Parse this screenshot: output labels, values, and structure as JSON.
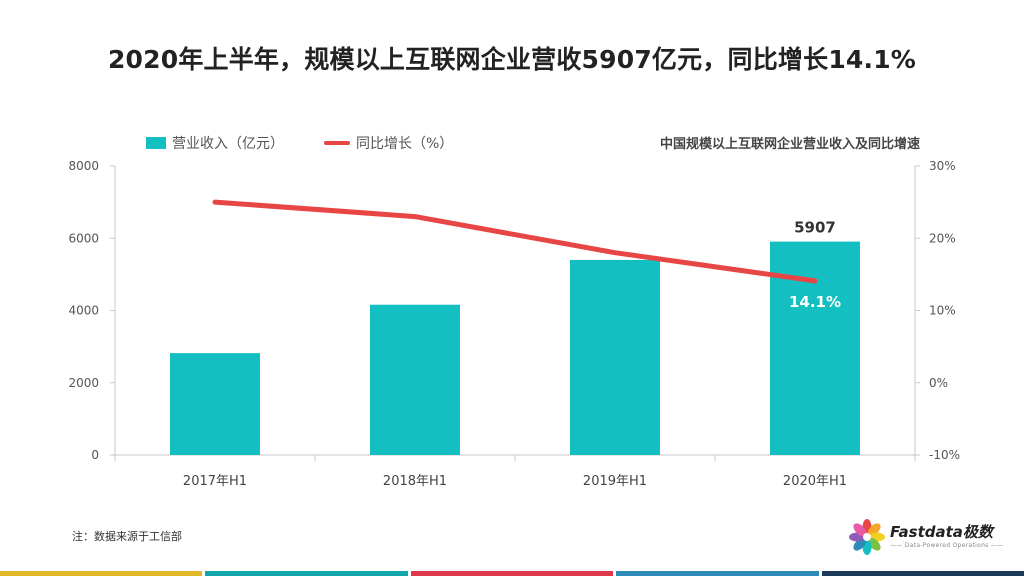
{
  "header": {
    "title": "2020年上半年，规模以上互联网企业营收5907亿元，同比增长14.1%"
  },
  "legend": {
    "bar_label": "营业收入（亿元）",
    "line_label": "同比增长（%）"
  },
  "chart_data": {
    "type": "bar",
    "title": "中国规模以上互联网企业营业收入及同比增速",
    "categories": [
      "2017年H1",
      "2018年H1",
      "2019年H1",
      "2020年H1"
    ],
    "series": [
      {
        "name": "营业收入（亿元）",
        "type": "bar",
        "axis": "left",
        "color": "#13bfc1",
        "values": [
          2820,
          4160,
          5400,
          5907
        ],
        "data_labels": [
          "",
          "",
          "",
          "5907"
        ]
      },
      {
        "name": "同比增长（%）",
        "type": "line",
        "axis": "right",
        "color": "#e84545",
        "values": [
          25,
          23,
          18,
          14.1
        ],
        "data_labels": [
          "",
          "",
          "",
          "14.1%"
        ]
      }
    ],
    "y_left": {
      "min": 0,
      "max": 8000,
      "ticks": [
        "0",
        "2000",
        "4000",
        "6000",
        "8000"
      ]
    },
    "y_right": {
      "min": -10,
      "max": 30,
      "ticks": [
        "-10%",
        "0%",
        "10%",
        "20%",
        "30%"
      ]
    },
    "grid": false,
    "legend_position": "top-left"
  },
  "footer": {
    "note": "注：数据来源于工信部",
    "logo_name": "Fastdata极数",
    "logo_tagline": "—— Data-Powered Operations ——"
  },
  "colors": {
    "stripes": [
      "#e2b728",
      "#13a7ab",
      "#e0394b",
      "#2e8bb7",
      "#1d3a5a"
    ],
    "logo_petals": [
      "#e84545",
      "#f4a62a",
      "#f2d024",
      "#7cc043",
      "#13bfc1",
      "#2e8bb7",
      "#8e5bb8",
      "#e75aa4"
    ]
  }
}
